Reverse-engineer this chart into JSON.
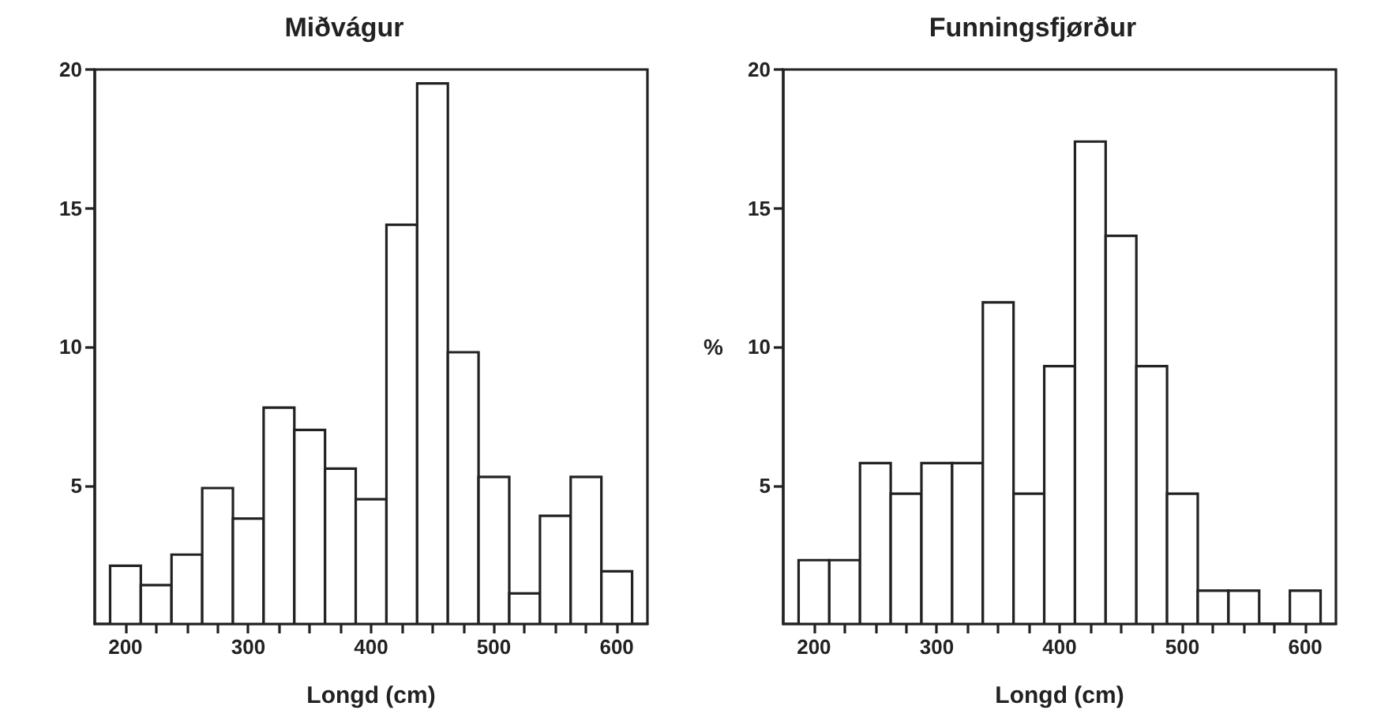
{
  "chart_data": [
    {
      "type": "histogram",
      "title": "Miðvágur",
      "xlabel": "Longd (cm)",
      "bins": [
        187.5,
        212.5,
        237.5,
        262.5,
        287.5,
        312.5,
        337.5,
        362.5,
        387.5,
        412.5,
        437.5,
        462.5,
        487.5,
        512.5,
        537.5,
        562.5,
        587.5,
        612.5
      ],
      "values": [
        2.1,
        1.4,
        2.5,
        4.9,
        3.8,
        7.8,
        7.0,
        5.6,
        4.5,
        14.4,
        19.5,
        9.8,
        5.3,
        1.1,
        3.9,
        5.3,
        1.9
      ],
      "color": "#ffffff",
      "xlim": [
        175,
        625
      ],
      "xticks": [
        200,
        {
          "value": 225,
          "label": null
        },
        {
          "value": 250,
          "label": null
        },
        {
          "value": 275,
          "label": null
        },
        300,
        {
          "value": 325,
          "label": null
        },
        {
          "value": 350,
          "label": null
        },
        {
          "value": 375,
          "label": null
        },
        400,
        {
          "value": 425,
          "label": null
        },
        {
          "value": 450,
          "label": null
        },
        {
          "value": 475,
          "label": null
        },
        500,
        {
          "value": 525,
          "label": null
        },
        {
          "value": 550,
          "label": null
        },
        {
          "value": 575,
          "label": null
        },
        600
      ],
      "ylim": [
        0,
        20
      ],
      "yticks": [
        5,
        10,
        15,
        20
      ],
      "grid": false
    },
    {
      "type": "histogram",
      "title": "Funningsfjørður",
      "xlabel": "Longd (cm)",
      "ylabel": "%",
      "bins": [
        187.5,
        212.5,
        237.5,
        262.5,
        287.5,
        312.5,
        337.5,
        362.5,
        387.5,
        412.5,
        437.5,
        462.5,
        487.5,
        512.5,
        537.5,
        562.5,
        587.5,
        612.5
      ],
      "values": [
        2.3,
        2.3,
        5.8,
        4.7,
        5.8,
        5.8,
        11.6,
        4.7,
        9.3,
        17.4,
        14.0,
        9.3,
        4.7,
        1.2,
        1.2,
        0,
        1.2
      ],
      "color": "#ffffff",
      "xlim": [
        175,
        625
      ],
      "xticks": [
        200,
        {
          "value": 225,
          "label": null
        },
        {
          "value": 250,
          "label": null
        },
        {
          "value": 275,
          "label": null
        },
        300,
        {
          "value": 325,
          "label": null
        },
        {
          "value": 350,
          "label": null
        },
        {
          "value": 375,
          "label": null
        },
        400,
        {
          "value": 425,
          "label": null
        },
        {
          "value": 450,
          "label": null
        },
        {
          "value": 475,
          "label": null
        },
        500,
        {
          "value": 525,
          "label": null
        },
        {
          "value": 550,
          "label": null
        },
        {
          "value": 575,
          "label": null
        },
        600
      ],
      "ylim": [
        0,
        20
      ],
      "yticks": [
        5,
        10,
        15,
        20
      ],
      "grid": false
    }
  ]
}
